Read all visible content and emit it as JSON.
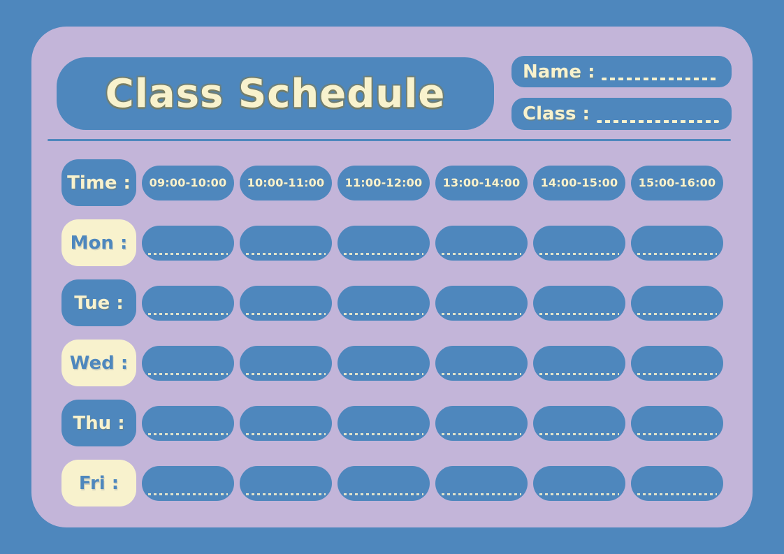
{
  "colors": {
    "blue": "#4E87BD",
    "lavender": "#C3B5D9",
    "cream": "#F8F2CD"
  },
  "header": {
    "title": "Class Schedule",
    "name_label": "Name :",
    "class_label": "Class :"
  },
  "schedule": {
    "time_label": "Time :",
    "time_slots": [
      "09:00-10:00",
      "10:00-11:00",
      "11:00-12:00",
      "13:00-14:00",
      "14:00-15:00",
      "15:00-16:00"
    ],
    "days": [
      {
        "label": "Mon :"
      },
      {
        "label": "Tue :"
      },
      {
        "label": "Wed :"
      },
      {
        "label": "Thu :"
      },
      {
        "label": "Fri :"
      }
    ]
  }
}
